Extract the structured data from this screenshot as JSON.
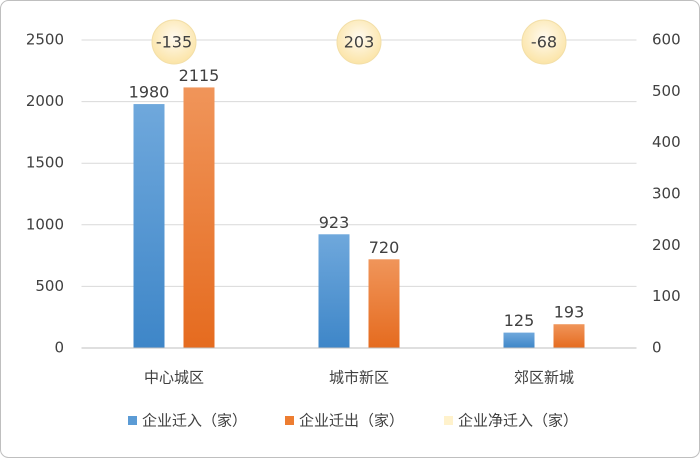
{
  "chart_data": {
    "type": "bar",
    "categories": [
      "中心城区",
      "城市新区",
      "郊区新城"
    ],
    "series": [
      {
        "name": "企业迁入（家）",
        "color": "#5b9bd5",
        "values": [
          1980,
          923,
          125
        ]
      },
      {
        "name": "企业迁出（家）",
        "color": "#ed7d31",
        "values": [
          2115,
          720,
          193
        ]
      },
      {
        "name": "企业净迁入（家）",
        "color": "#fff2cc",
        "values": [
          -135,
          203,
          -68
        ],
        "style": "bubble"
      }
    ],
    "ylim": [
      0,
      2500
    ],
    "yticks": [
      0,
      500,
      1000,
      1500,
      2000,
      2500
    ],
    "y2lim": [
      0,
      600
    ],
    "y2ticks": [
      0,
      100,
      200,
      300,
      400,
      500,
      600
    ],
    "grid": true,
    "legend": "bottom"
  }
}
